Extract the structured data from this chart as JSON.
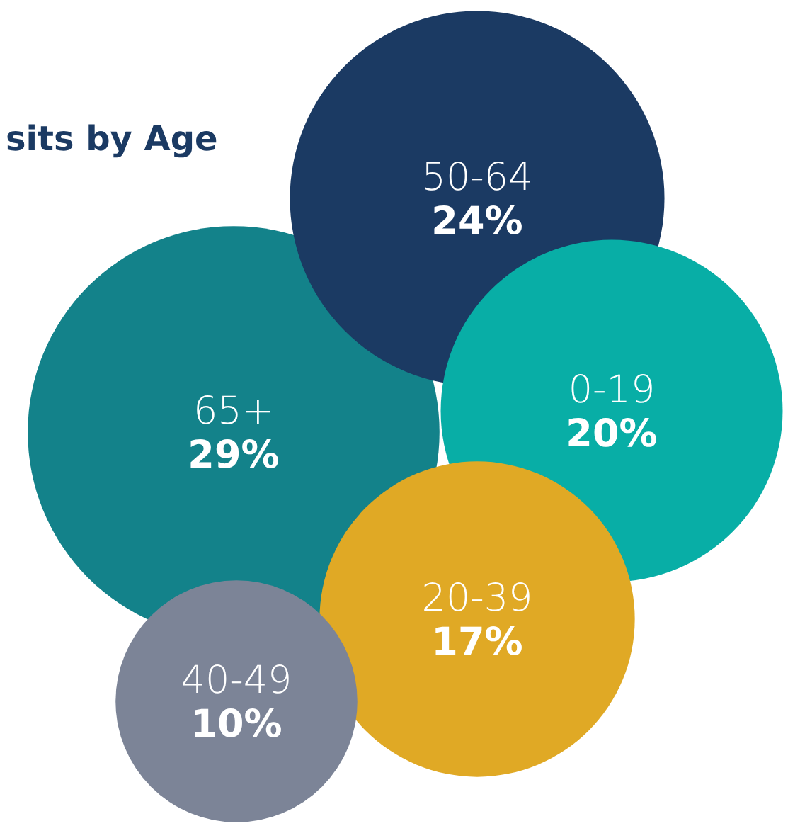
{
  "chart_data": {
    "type": "other",
    "title": "sits by Age",
    "categories": [
      "65+",
      "50-64",
      "0-19",
      "20-39",
      "40-49"
    ],
    "values": [
      29,
      24,
      20,
      17,
      10
    ],
    "value_labels": [
      "29%",
      "24%",
      "20%",
      "17%",
      "10%"
    ],
    "colors": [
      "#13828a",
      "#1b3a63",
      "#08aea6",
      "#e0a925",
      "#7c8497"
    ]
  }
}
